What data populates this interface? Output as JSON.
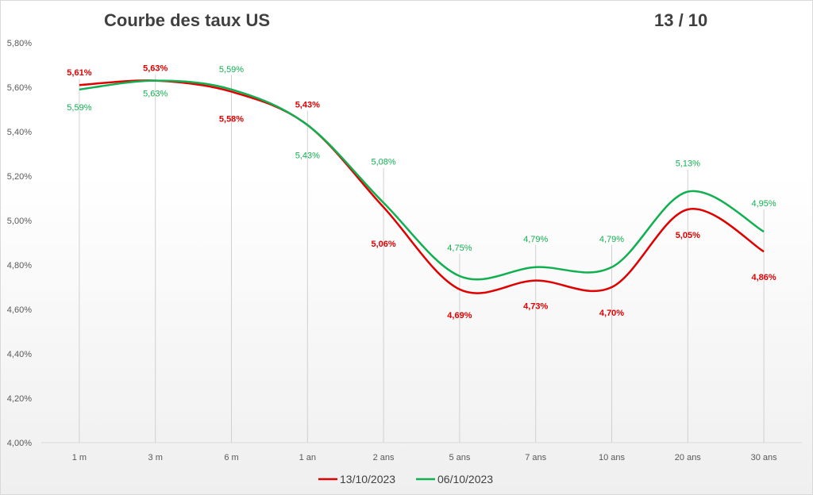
{
  "chart_data": {
    "type": "line",
    "title": "Courbe des taux US",
    "date_label": "13 / 10",
    "categories": [
      "1 m",
      "3 m",
      "6 m",
      "1 an",
      "2 ans",
      "5 ans",
      "7 ans",
      "10 ans",
      "20 ans",
      "30 ans"
    ],
    "ylim": [
      4.0,
      5.8
    ],
    "yticks": [
      "4,00%",
      "4,20%",
      "4,40%",
      "4,60%",
      "4,80%",
      "5,00%",
      "5,20%",
      "5,40%",
      "5,60%",
      "5,80%"
    ],
    "grid": false,
    "legend": "bottom",
    "series": [
      {
        "name": "13/10/2023",
        "color": "#e00000",
        "values": [
          5.61,
          5.63,
          5.58,
          5.43,
          5.06,
          4.69,
          4.73,
          4.7,
          5.05,
          4.86
        ],
        "labels": [
          "5,61%",
          "5,63%",
          "5,58%",
          "5,43%",
          "5,06%",
          "4,69%",
          "4,73%",
          "4,70%",
          "5,05%",
          "4,86%"
        ]
      },
      {
        "name": "06/10/2023",
        "color": "#10b050",
        "values": [
          5.59,
          5.63,
          5.59,
          5.43,
          5.08,
          4.75,
          4.79,
          4.79,
          5.13,
          4.95
        ],
        "labels": [
          "5,59%",
          "5,63%",
          "5,59%",
          "5,43%",
          "5,08%",
          "4,75%",
          "4,79%",
          "4,79%",
          "5,13%",
          "4,95%"
        ]
      }
    ]
  }
}
